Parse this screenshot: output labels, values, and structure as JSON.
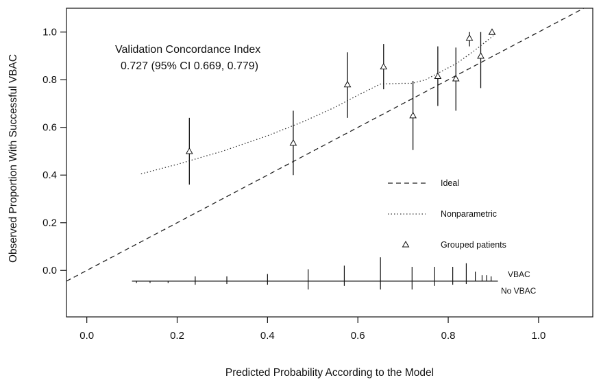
{
  "chart_data": {
    "type": "scatter",
    "xlabel": "Predicted Probability According to the Model",
    "ylabel": "Observed Proportion With Successful VBAC",
    "xlim": [
      -0.045,
      1.12
    ],
    "ylim": [
      -0.195,
      1.1
    ],
    "x_ticks": [
      0.0,
      0.2,
      0.4,
      0.6,
      0.8,
      1.0
    ],
    "x_tick_labels": [
      "0.0",
      "0.2",
      "0.4",
      "0.6",
      "0.8",
      "1.0"
    ],
    "y_ticks": [
      0.0,
      0.2,
      0.4,
      0.6,
      0.8,
      1.0
    ],
    "y_tick_labels": [
      "0.0",
      "0.2",
      "0.4",
      "0.6",
      "0.8",
      "1.0"
    ],
    "grid": false,
    "legend_position": "right",
    "annotation": {
      "line1": "Validation Concordance Index",
      "line2": "0.727 (95% CI 0.669, 0.779)"
    },
    "legend": [
      {
        "label": "Ideal",
        "style": "dashed"
      },
      {
        "label": "Nonparametric",
        "style": "dotted"
      },
      {
        "label": "Grouped patients",
        "style": "triangle"
      }
    ],
    "ideal_line": {
      "x": [
        -0.045,
        1.12
      ],
      "y": [
        -0.045,
        1.12
      ]
    },
    "nonparametric": {
      "x": [
        0.12,
        0.2,
        0.3,
        0.4,
        0.48,
        0.55,
        0.6,
        0.65,
        0.7,
        0.72,
        0.75,
        0.78,
        0.82,
        0.86,
        0.9
      ],
      "y": [
        0.405,
        0.445,
        0.5,
        0.565,
        0.625,
        0.685,
        0.735,
        0.782,
        0.785,
        0.785,
        0.8,
        0.83,
        0.87,
        0.925,
        0.985
      ]
    },
    "grouped_patients": [
      {
        "x": 0.227,
        "y": 0.5,
        "lo": 0.36,
        "hi": 0.64
      },
      {
        "x": 0.457,
        "y": 0.535,
        "lo": 0.4,
        "hi": 0.67
      },
      {
        "x": 0.577,
        "y": 0.78,
        "lo": 0.64,
        "hi": 0.915
      },
      {
        "x": 0.657,
        "y": 0.855,
        "lo": 0.76,
        "hi": 0.95
      },
      {
        "x": 0.722,
        "y": 0.65,
        "lo": 0.505,
        "hi": 0.795
      },
      {
        "x": 0.777,
        "y": 0.815,
        "lo": 0.69,
        "hi": 0.94
      },
      {
        "x": 0.817,
        "y": 0.805,
        "lo": 0.67,
        "hi": 0.935
      },
      {
        "x": 0.847,
        "y": 0.975,
        "lo": 0.94,
        "hi": 1.0
      },
      {
        "x": 0.872,
        "y": 0.9,
        "lo": 0.765,
        "hi": 1.0
      },
      {
        "x": 0.897,
        "y": 1.0,
        "lo": 1.0,
        "hi": 1.0
      }
    ],
    "histogram": {
      "label_top": "VBAC",
      "label_bottom": "No VBAC",
      "baseline_y": -0.045,
      "x_range": [
        0.1,
        0.91
      ],
      "vbac": [
        {
          "x": 0.24,
          "h": 0.02
        },
        {
          "x": 0.31,
          "h": 0.02
        },
        {
          "x": 0.4,
          "h": 0.03
        },
        {
          "x": 0.49,
          "h": 0.05
        },
        {
          "x": 0.57,
          "h": 0.065
        },
        {
          "x": 0.65,
          "h": 0.1
        },
        {
          "x": 0.72,
          "h": 0.06
        },
        {
          "x": 0.77,
          "h": 0.06
        },
        {
          "x": 0.81,
          "h": 0.06
        },
        {
          "x": 0.84,
          "h": 0.075
        },
        {
          "x": 0.86,
          "h": 0.04
        },
        {
          "x": 0.875,
          "h": 0.025
        },
        {
          "x": 0.885,
          "h": 0.025
        },
        {
          "x": 0.895,
          "h": 0.02
        }
      ],
      "no_vbac": [
        {
          "x": 0.11,
          "h": 0.008
        },
        {
          "x": 0.14,
          "h": 0.008
        },
        {
          "x": 0.18,
          "h": 0.008
        },
        {
          "x": 0.24,
          "h": 0.015
        },
        {
          "x": 0.31,
          "h": 0.012
        },
        {
          "x": 0.4,
          "h": 0.015
        },
        {
          "x": 0.49,
          "h": 0.035
        },
        {
          "x": 0.57,
          "h": 0.02
        },
        {
          "x": 0.65,
          "h": 0.035
        },
        {
          "x": 0.72,
          "h": 0.035
        },
        {
          "x": 0.77,
          "h": 0.02
        },
        {
          "x": 0.81,
          "h": 0.015
        },
        {
          "x": 0.84,
          "h": 0.012
        }
      ]
    }
  }
}
